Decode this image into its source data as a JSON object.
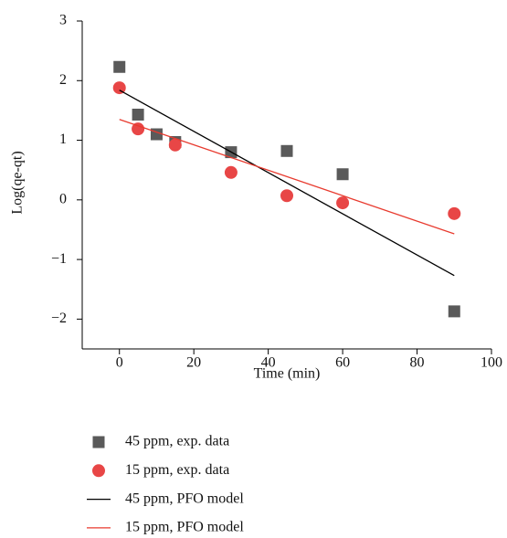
{
  "chart_data": {
    "type": "scatter",
    "x_label": "Time (min)",
    "y_label": "Log(qe-qt)",
    "xlim": [
      -10,
      100
    ],
    "xticks": [
      0,
      20,
      40,
      60,
      80,
      100
    ],
    "ylim": [
      -2.5,
      3
    ],
    "yticks": [
      {
        "value": -2,
        "label": "−2"
      },
      {
        "value": -1,
        "label": "−1"
      },
      0,
      1,
      2,
      3
    ],
    "legend": "below",
    "series": [
      {
        "name": "45 ppm, exp. data",
        "color": "#5a5a5a",
        "marker": "square",
        "x": [
          0,
          5,
          10,
          15,
          30,
          45,
          60,
          90
        ],
        "values": [
          2.23,
          1.43,
          1.1,
          0.97,
          0.8,
          0.82,
          0.43,
          -1.87
        ]
      },
      {
        "name": "15 ppm, exp. data",
        "color": "#e84646",
        "marker": "circle",
        "x": [
          0,
          5,
          15,
          30,
          45,
          60,
          90
        ],
        "values": [
          1.88,
          1.19,
          0.92,
          0.46,
          0.07,
          -0.05,
          -0.23
        ]
      },
      {
        "name": "45 ppm, PFO model",
        "color": "#000000",
        "marker": "line",
        "x": [
          0,
          90
        ],
        "values": [
          1.84,
          -1.27
        ]
      },
      {
        "name": "15 ppm, PFO model",
        "color": "#e83a2e",
        "marker": "line",
        "x": [
          0,
          90
        ],
        "values": [
          1.35,
          -0.57
        ]
      }
    ]
  }
}
